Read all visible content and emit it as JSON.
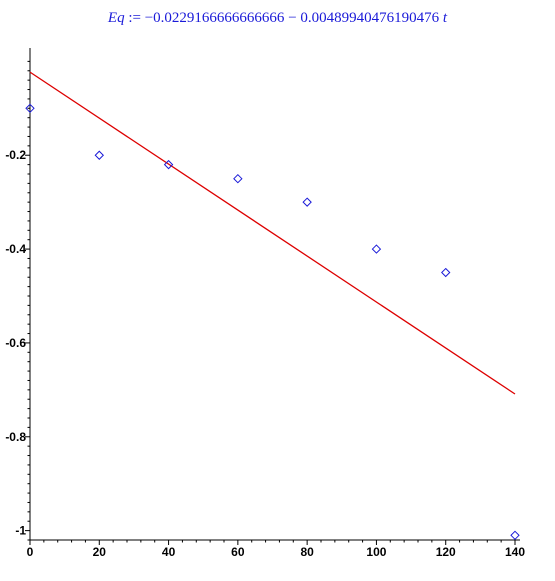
{
  "equation": {
    "lhs": "Eq",
    "op": ":=",
    "rhs_const": "−0.0229166666666666",
    "rhs_minus": "−",
    "rhs_coef": "0.00489940476190476",
    "var": "t"
  },
  "colors": {
    "points": "#1a1ad8",
    "line": "#dd0000",
    "equation": "#1a1ad8"
  },
  "chart_data": {
    "type": "scatter",
    "title": "",
    "xlabel": "",
    "ylabel": "",
    "xlim": [
      0,
      140
    ],
    "ylim": [
      -1.02,
      0.02
    ],
    "x_ticks": [
      "0",
      "20",
      "40",
      "60",
      "80",
      "100",
      "120",
      "140"
    ],
    "y_ticks": [
      "-0.2",
      "-0.4",
      "-0.6",
      "-0.8",
      "-1"
    ],
    "series": [
      {
        "marker": "diamond",
        "x": [
          0,
          20,
          40,
          60,
          80,
          100,
          120,
          140
        ],
        "y": [
          -0.1,
          -0.2,
          -0.22,
          -0.25,
          -0.3,
          -0.4,
          -0.45,
          -1.01
        ]
      }
    ],
    "fit_line": {
      "intercept": -0.0229166666666666,
      "slope": -0.00489940476190476,
      "x": [
        0,
        140
      ]
    }
  }
}
